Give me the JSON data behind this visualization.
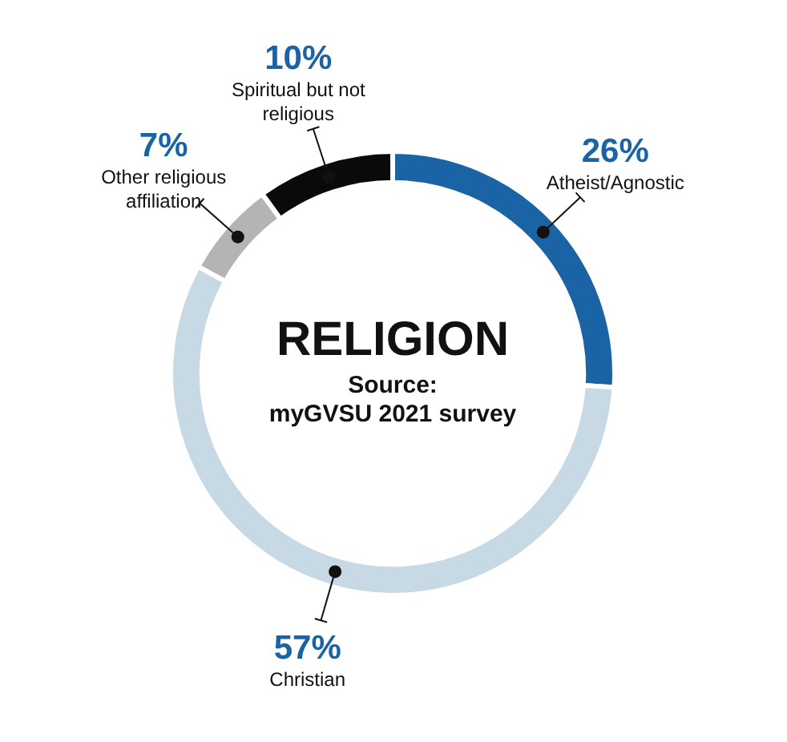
{
  "chart_data": {
    "type": "donut",
    "title": "RELIGION",
    "subtitle": "Source: myGVSU 2021 survey",
    "categories": [
      "Atheist/Agnostic",
      "Christian",
      "Other religious affiliation",
      "Spiritual but not religious"
    ],
    "values": [
      26,
      57,
      7,
      10
    ],
    "value_labels": [
      "26%",
      "57%",
      "7%",
      "10%"
    ],
    "colors": [
      "#1a63a5",
      "#c6d9e5",
      "#b4b4b4",
      "#0a0a0a"
    ]
  }
}
